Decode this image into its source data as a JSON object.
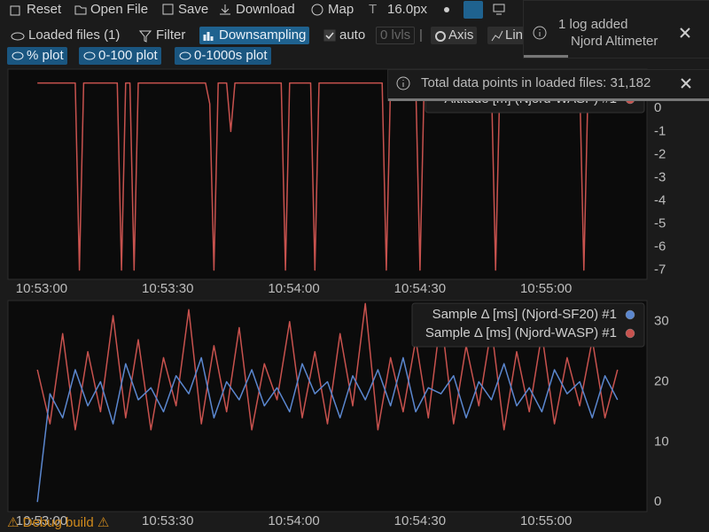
{
  "toolbar": {
    "row1": [
      "Reset",
      "Open File",
      "Save",
      "Download",
      "Map",
      "16.0px"
    ],
    "row2": {
      "loaded": "Loaded files (1)",
      "filter": "Filter",
      "downsampling": "Downsampling",
      "auto": "auto",
      "levels": "0 lvls",
      "axis": "Axis",
      "lines": "Lin"
    },
    "plots": [
      "% plot",
      "0-100 plot",
      "0-1000s plot"
    ]
  },
  "notifications": [
    {
      "title": "1 log added",
      "detail": "Njord Altimeter"
    },
    {
      "title": "Total data points in loaded files: 31,182"
    }
  ],
  "footer": "⚠ Debug build ⚠",
  "chart_data": [
    {
      "type": "line",
      "x": [
        "10:52:59",
        "10:53:08",
        "10:53:09",
        "10:53:10",
        "10:53:18",
        "10:53:19",
        "10:53:20",
        "10:53:21",
        "10:53:22",
        "10:53:23",
        "10:53:39",
        "10:53:40",
        "10:53:41",
        "10:53:42",
        "10:53:44",
        "10:53:45",
        "10:53:46",
        "10:53:57",
        "10:53:58",
        "10:53:59",
        "10:54:04",
        "10:54:05",
        "10:54:06",
        "10:54:21",
        "10:54:22",
        "10:54:23",
        "10:54:29",
        "10:54:30",
        "10:54:31",
        "10:54:47",
        "10:54:48",
        "10:54:49",
        "10:55:08",
        "10:55:09",
        "10:55:10",
        "10:55:18"
      ],
      "series": [
        {
          "name": "Altitude [m] (Njord-WASP) #1",
          "color": "#c8524e",
          "values": [
            1.1,
            1.1,
            -7,
            1.1,
            1.1,
            -7,
            1.1,
            1.1,
            -7,
            1.1,
            1.1,
            0.2,
            -7,
            1.1,
            1.1,
            -1.0,
            1.1,
            1.1,
            -7,
            1.1,
            1.1,
            -7,
            1.1,
            1.1,
            -7,
            1.1,
            1.1,
            -7,
            1.1,
            1.1,
            -7,
            1.1,
            1.1,
            -7,
            1.1,
            1.1
          ]
        }
      ],
      "xlim": [
        "10:52:52",
        "10:55:24"
      ],
      "xticks": [
        "10:53:00",
        "10:53:30",
        "10:54:00",
        "10:54:30",
        "10:55:00"
      ],
      "ylim": [
        -7.4,
        1.7
      ],
      "yticks": [
        -7,
        -6,
        -5,
        -4,
        -3,
        -2,
        -1,
        0
      ],
      "yaxis_position": "right",
      "legend": "top-right",
      "grid": false
    },
    {
      "type": "line",
      "x": [
        "10:52:59",
        "10:53:02",
        "10:53:05",
        "10:53:08",
        "10:53:11",
        "10:53:14",
        "10:53:17",
        "10:53:20",
        "10:53:23",
        "10:53:26",
        "10:53:29",
        "10:53:32",
        "10:53:35",
        "10:53:38",
        "10:53:41",
        "10:53:44",
        "10:53:47",
        "10:53:50",
        "10:53:53",
        "10:53:56",
        "10:53:59",
        "10:54:02",
        "10:54:05",
        "10:54:08",
        "10:54:11",
        "10:54:14",
        "10:54:17",
        "10:54:20",
        "10:54:23",
        "10:54:26",
        "10:54:29",
        "10:54:32",
        "10:54:35",
        "10:54:38",
        "10:54:41",
        "10:54:44",
        "10:54:47",
        "10:54:50",
        "10:54:53",
        "10:54:56",
        "10:54:59",
        "10:55:02",
        "10:55:05",
        "10:55:08",
        "10:55:11",
        "10:55:14",
        "10:55:17"
      ],
      "series": [
        {
          "name": "Sample Δ [ms] (Njord-SF20) #1",
          "color": "#5b87cf",
          "values": [
            0,
            18,
            14,
            22,
            16,
            20,
            13,
            23,
            17,
            19,
            15,
            21,
            18,
            24,
            14,
            20,
            17,
            22,
            16,
            19,
            15,
            23,
            18,
            20,
            14,
            21,
            17,
            22,
            16,
            24,
            15,
            19,
            18,
            21,
            14,
            20,
            17,
            23,
            16,
            19,
            15,
            22,
            18,
            20,
            14,
            21,
            17
          ]
        },
        {
          "name": "Sample Δ [ms] (Njord-WASP) #1",
          "color": "#c8524e",
          "values": [
            22,
            13,
            28,
            12,
            25,
            15,
            31,
            14,
            27,
            12,
            24,
            16,
            32,
            13,
            26,
            15,
            29,
            12,
            23,
            17,
            30,
            14,
            25,
            13,
            28,
            16,
            33,
            12,
            24,
            15,
            27,
            14,
            31,
            13,
            26,
            16,
            29,
            12,
            25,
            15,
            28,
            13,
            24,
            16,
            27,
            14,
            22
          ]
        }
      ],
      "xlim": [
        "10:52:52",
        "10:55:24"
      ],
      "xticks": [
        "10:53:00",
        "10:53:30",
        "10:54:00",
        "10:54:30",
        "10:55:00"
      ],
      "ylim": [
        -1.6,
        33.5
      ],
      "yticks": [
        0,
        10,
        20,
        30
      ],
      "yaxis_position": "right",
      "legend": "top-right",
      "grid": false
    }
  ]
}
